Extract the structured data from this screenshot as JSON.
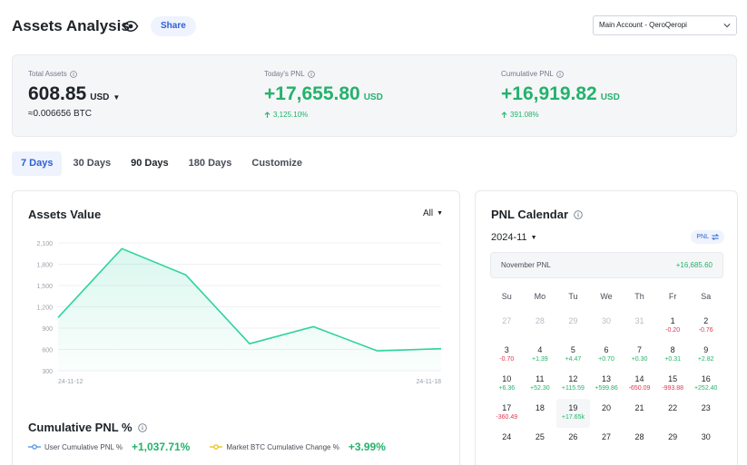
{
  "header": {
    "title": "Assets Analysis",
    "share_label": "Share",
    "account": "Main Account - QeroQeropi"
  },
  "summary": {
    "total_assets": {
      "label": "Total Assets",
      "value": "608.85",
      "unit": "USD",
      "btc": "≈0.006656 BTC"
    },
    "todays_pnl": {
      "label": "Today's PNL",
      "value": "+17,655.80",
      "unit": "USD",
      "change": "3,125.10%"
    },
    "cumulative_pnl": {
      "label": "Cumulative PNL",
      "value": "+16,919.82",
      "unit": "USD",
      "change": "391.08%"
    }
  },
  "tabs": [
    "7 Days",
    "30 Days",
    "90 Days",
    "180 Days",
    "Customize"
  ],
  "assets_value": {
    "title": "Assets Value",
    "range": "All"
  },
  "chart_data": {
    "type": "area",
    "x_ticks": [
      "24-11-12",
      "24-11-18"
    ],
    "y_ticks": [
      "2,100",
      "1,800",
      "1,500",
      "1,200",
      "900",
      "600",
      "300"
    ],
    "ylim": [
      300,
      2100
    ],
    "values": [
      1050,
      2020,
      1650,
      680,
      920,
      580,
      610
    ],
    "color": "#2ed3a0"
  },
  "cumulative": {
    "title": "Cumulative PNL %",
    "user_label": "User Cumulative PNL %",
    "user_value": "+1,037.71%",
    "market_label": "Market BTC Cumulative Change %",
    "market_value": "+3.99%",
    "user_color": "#3c8be0",
    "market_color": "#e8b800"
  },
  "calendar": {
    "title": "PNL Calendar",
    "month": "2024-11",
    "toggle_label": "PNL",
    "month_label": "November PNL",
    "month_value": "+16,685.60",
    "weekdays": [
      "Su",
      "Mo",
      "Tu",
      "We",
      "Th",
      "Fr",
      "Sa"
    ],
    "weeks": [
      [
        {
          "d": "27",
          "m": true
        },
        {
          "d": "28",
          "m": true
        },
        {
          "d": "29",
          "m": true
        },
        {
          "d": "30",
          "m": true
        },
        {
          "d": "31",
          "m": true
        },
        {
          "d": "1",
          "p": "-0.20"
        },
        {
          "d": "2",
          "p": "-0.76"
        }
      ],
      [
        {
          "d": "3",
          "p": "-0.70"
        },
        {
          "d": "4",
          "p": "+1.39"
        },
        {
          "d": "5",
          "p": "+4.47"
        },
        {
          "d": "6",
          "p": "+0.70"
        },
        {
          "d": "7",
          "p": "+0.30"
        },
        {
          "d": "8",
          "p": "+0.31"
        },
        {
          "d": "9",
          "p": "+2.82"
        }
      ],
      [
        {
          "d": "10",
          "p": "+6.36"
        },
        {
          "d": "11",
          "p": "+52.30"
        },
        {
          "d": "12",
          "p": "+115.59"
        },
        {
          "d": "13",
          "p": "+599.86"
        },
        {
          "d": "14",
          "p": "-650.09"
        },
        {
          "d": "15",
          "p": "-993.88"
        },
        {
          "d": "16",
          "p": "+252.40"
        }
      ],
      [
        {
          "d": "17",
          "p": "-360.49"
        },
        {
          "d": "18"
        },
        {
          "d": "19",
          "p": "+17.65k",
          "t": true
        },
        {
          "d": "20"
        },
        {
          "d": "21"
        },
        {
          "d": "22"
        },
        {
          "d": "23"
        }
      ],
      [
        {
          "d": "24"
        },
        {
          "d": "25"
        },
        {
          "d": "26"
        },
        {
          "d": "27"
        },
        {
          "d": "28"
        },
        {
          "d": "29"
        },
        {
          "d": "30"
        }
      ]
    ]
  }
}
